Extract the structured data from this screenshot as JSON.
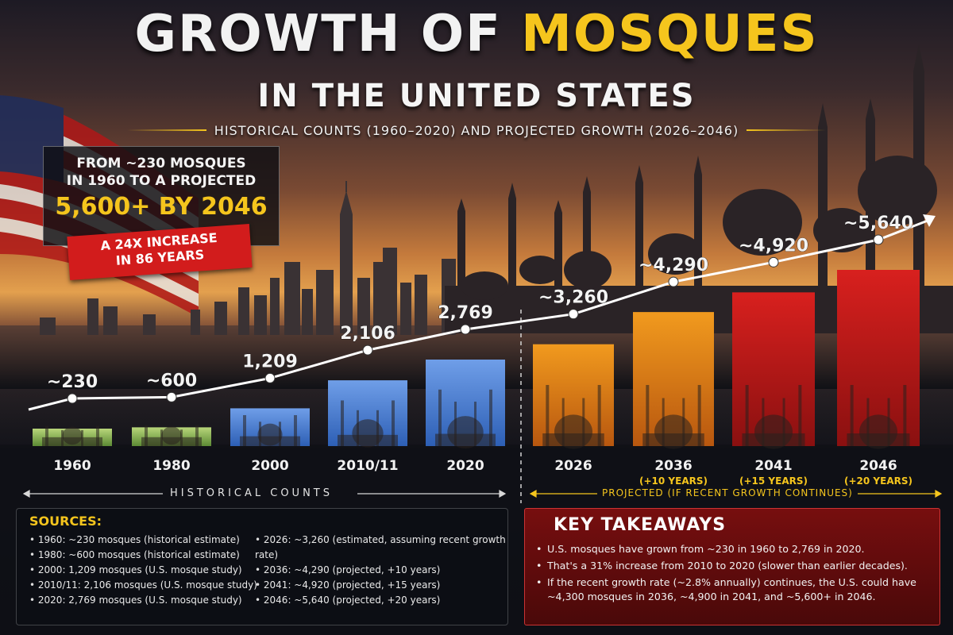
{
  "header": {
    "title_part1": "GROWTH OF ",
    "title_highlight": "MOSQUES",
    "title_line2": "IN THE UNITED STATES",
    "subtitle": "HISTORICAL COUNTS (1960–2020) AND PROJECTED GROWTH (2026–2046)"
  },
  "callout": {
    "line1": "FROM ~230 MOSQUES",
    "line2": "IN 1960 TO A PROJECTED",
    "highlight": "5,600+ BY 2046",
    "ribbon_line1": "A 24X INCREASE",
    "ribbon_line2": "IN 86 YEARS"
  },
  "chart_data": {
    "type": "bar",
    "categories": [
      "1960",
      "1980",
      "2000",
      "2010/11",
      "2020",
      "2026",
      "2036",
      "2041",
      "2046"
    ],
    "values": [
      230,
      600,
      1209,
      2106,
      2769,
      3260,
      4290,
      4920,
      5640
    ],
    "data_labels": [
      "~230",
      "~600",
      "1,209",
      "2,106",
      "2,769",
      "~3,260",
      "~4,290",
      "~4,920",
      "~5,640"
    ],
    "notes": [
      "",
      "",
      "",
      "",
      "",
      "",
      "(+10 YEARS)",
      "(+15 YEARS)",
      "(+20 YEARS)"
    ],
    "kind": [
      "historical",
      "historical",
      "historical",
      "historical",
      "historical",
      "projected",
      "projected",
      "projected",
      "projected"
    ],
    "title": "",
    "xlabel": "",
    "ylabel": "",
    "ylim": [
      0,
      5640
    ],
    "legend": "none",
    "grid": false,
    "trend_line": true,
    "colors": {
      "historical_top": "#6f9ee8",
      "historical_bottom": "#2d5fb5",
      "projected_orange": "#f19a1e",
      "projected_red": "#d8201e",
      "line": "#ffffff",
      "label": "#f3f3f3",
      "note": "#f5c51d"
    }
  },
  "sections": {
    "historical_label": "HISTORICAL COUNTS",
    "projected_label": "PROJECTED (IF RECENT GROWTH CONTINUES)"
  },
  "sources": {
    "heading": "SOURCES:",
    "left": [
      "1960: ~230 mosques (historical estimate)",
      "1980: ~600 mosques (historical estimate)",
      "2000: 1,209 mosques (U.S. mosque study)",
      "2010/11: 2,106 mosques (U.S. mosque study)",
      "2020: 2,769 mosques (U.S. mosque study)"
    ],
    "right": [
      "2026: ~3,260 (estimated, assuming recent growth rate)",
      "2036: ~4,290 (projected, +10 years)",
      "2041: ~4,920 (projected, +15 years)",
      "2046: ~5,640 (projected, +20 years)"
    ]
  },
  "takeaways": {
    "heading": "KEY TAKEAWAYS",
    "items": [
      "U.S. mosques have grown from ~230 in 1960 to 2,769 in 2020.",
      "That's a 31% increase from 2010 to 2020 (slower than earlier decades).",
      "If the recent growth rate (~2.8% annually) continues, the U.S. could have ~4,300 mosques in 2036, ~4,900 in 2041, and ~5,600+ in 2046."
    ]
  },
  "icons": [
    "us-flag-icon",
    "city-skyline-icon",
    "mosque-skyline-icon",
    "mosque-icon",
    "arrow-icon"
  ]
}
